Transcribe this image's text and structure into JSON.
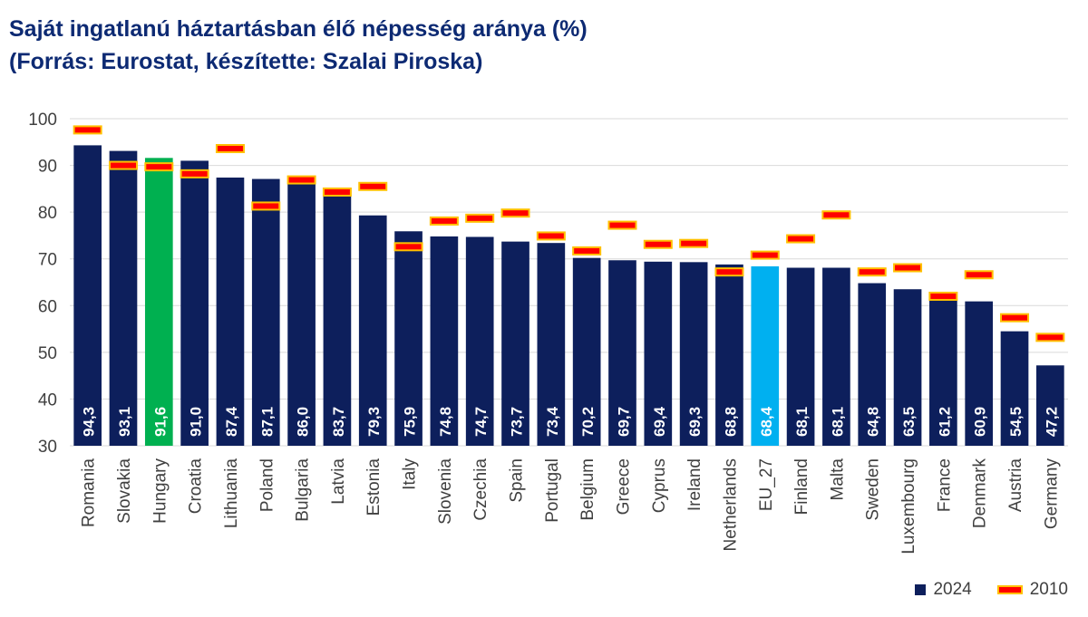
{
  "title_line1": "Saját ingatlanú háztartásban élő népesség aránya (%)",
  "title_line2": "(Forrás: Eurostat, készítette: Szalai Piroska)",
  "colors": {
    "bar_default": "#0d1f5c",
    "bar_hungary": "#00b050",
    "bar_eu": "#00b0f0",
    "marker_fill": "#ff0000",
    "marker_border": "#ffc000",
    "grid": "#d9d9d9",
    "title": "#0d2a73"
  },
  "legend": {
    "series_2024": "2024",
    "series_2010": "2010"
  },
  "chart_data": {
    "type": "bar",
    "title": "Saját ingatlanú háztartásban élő népesség aránya (%)",
    "subtitle": "(Forrás: Eurostat, készítette: Szalai Piroska)",
    "xlabel": "",
    "ylabel": "",
    "ylim": [
      30,
      100
    ],
    "yticks": [
      30,
      40,
      50,
      60,
      70,
      80,
      90,
      100
    ],
    "grid": true,
    "legend_position": "bottom-right",
    "categories": [
      "Romania",
      "Slovakia",
      "Hungary",
      "Croatia",
      "Lithuania",
      "Poland",
      "Bulgaria",
      "Latvia",
      "Estonia",
      "Italy",
      "Slovenia",
      "Czechia",
      "Spain",
      "Portugal",
      "Belgium",
      "Greece",
      "Cyprus",
      "Ireland",
      "Netherlands",
      "EU_27",
      "Finland",
      "Malta",
      "Sweden",
      "Luxembourg",
      "France",
      "Denmark",
      "Austria",
      "Germany"
    ],
    "series": [
      {
        "name": "2024",
        "type": "bar",
        "values": [
          94.3,
          93.1,
          91.6,
          91.0,
          87.4,
          87.1,
          86.0,
          83.7,
          79.3,
          75.9,
          74.8,
          74.7,
          73.7,
          73.4,
          70.2,
          69.7,
          69.4,
          69.3,
          68.8,
          68.4,
          68.1,
          68.1,
          64.8,
          63.5,
          61.2,
          60.9,
          54.5,
          47.2
        ],
        "labels": [
          "94,3",
          "93,1",
          "91,6",
          "91,0",
          "87,4",
          "87,1",
          "86,0",
          "83,7",
          "79,3",
          "75,9",
          "74,8",
          "74,7",
          "73,7",
          "73,4",
          "70,2",
          "69,7",
          "69,4",
          "69,3",
          "68,8",
          "68,4",
          "68,1",
          "68,1",
          "64,8",
          "63,5",
          "61,2",
          "60,9",
          "54,5",
          "47,2"
        ]
      },
      {
        "name": "2010",
        "type": "marker",
        "values": [
          97.6,
          90.0,
          89.7,
          88.2,
          93.6,
          81.3,
          86.9,
          84.3,
          85.5,
          72.6,
          78.1,
          78.7,
          79.8,
          74.9,
          71.7,
          77.2,
          73.1,
          73.3,
          67.2,
          70.8,
          74.3,
          79.4,
          67.2,
          68.1,
          62.0,
          66.6,
          57.4,
          53.2
        ]
      }
    ],
    "highlight": {
      "Hungary": "#00b050",
      "EU_27": "#00b0f0"
    }
  }
}
